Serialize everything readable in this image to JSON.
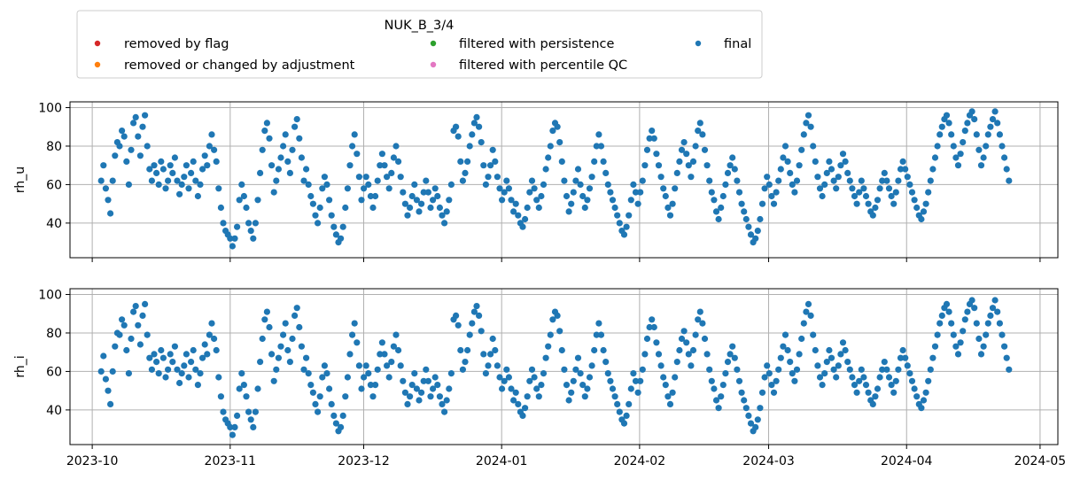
{
  "colors": {
    "removed_by_flag": "#d62728",
    "removed_or_changed_by_adjustment": "#ff7f0e",
    "filtered_with_persistence": "#2ca02c",
    "filtered_with_percentile_qc": "#e377c2",
    "final": "#1f77b4"
  },
  "legend": {
    "title": "NUK_B_3/4",
    "entries": [
      {
        "label": "removed by flag",
        "color_key": "removed_by_flag"
      },
      {
        "label": "filtered with persistence",
        "color_key": "filtered_with_persistence"
      },
      {
        "label": "final",
        "color_key": "final"
      },
      {
        "label": "removed or changed by adjustment",
        "color_key": "removed_or_changed_by_adjustment"
      },
      {
        "label": "filtered with percentile QC",
        "color_key": "filtered_with_percentile_qc"
      }
    ]
  },
  "chart_data": [
    {
      "type": "scatter",
      "ylabel": "rh_u",
      "xlim": [
        "2023-09-26",
        "2024-05-05"
      ],
      "ylim": [
        22,
        103
      ],
      "yticks": [
        40,
        60,
        80,
        100
      ],
      "xticks": [
        "2023-10-01",
        "2023-11-01",
        "2023-12-01",
        "2024-01-01",
        "2024-02-01",
        "2024-03-01",
        "2024-04-01",
        "2024-05-01"
      ],
      "xtick_labels": [],
      "grid": true,
      "series": [
        {
          "name": "final",
          "x_start": "2023-10-03",
          "x_end": "2024-04-24",
          "y": [
            62,
            70,
            58,
            52,
            45,
            62,
            75,
            82,
            80,
            88,
            85,
            72,
            60,
            78,
            92,
            95,
            85,
            75,
            90,
            96,
            80,
            68,
            62,
            70,
            66,
            60,
            72,
            68,
            58,
            62,
            70,
            66,
            74,
            62,
            55,
            60,
            64,
            70,
            58,
            66,
            72,
            62,
            54,
            60,
            68,
            75,
            70,
            80,
            86,
            78,
            72,
            58,
            48,
            40,
            36,
            34,
            32,
            28,
            32,
            38,
            52,
            60,
            54,
            48,
            40,
            36,
            32,
            40,
            52,
            66,
            78,
            88,
            92,
            84,
            70,
            56,
            62,
            68,
            74,
            80,
            86,
            72,
            66,
            78,
            90,
            94,
            84,
            74,
            62,
            68,
            60,
            54,
            50,
            44,
            40,
            48,
            58,
            64,
            60,
            52,
            44,
            38,
            34,
            30,
            32,
            38,
            48,
            58,
            70,
            80,
            86,
            76,
            64,
            52,
            58,
            64,
            60,
            54,
            48,
            54,
            62,
            70,
            76,
            70,
            64,
            58,
            66,
            74,
            80,
            72,
            64,
            56,
            50,
            44,
            48,
            54,
            60,
            52,
            46,
            50,
            56,
            62,
            56,
            48,
            52,
            58,
            54,
            48,
            44,
            40,
            46,
            52,
            60,
            88,
            90,
            85,
            72,
            62,
            66,
            72,
            80,
            86,
            92,
            95,
            90,
            82,
            70,
            60,
            64,
            70,
            78,
            72,
            64,
            58,
            52,
            56,
            62,
            58,
            52,
            46,
            50,
            44,
            40,
            38,
            42,
            48,
            56,
            62,
            58,
            52,
            48,
            54,
            60,
            68,
            74,
            80,
            88,
            92,
            90,
            82,
            72,
            62,
            54,
            46,
            50,
            56,
            62,
            68,
            60,
            54,
            48,
            52,
            58,
            64,
            72,
            80,
            86,
            80,
            72,
            66,
            60,
            56,
            52,
            48,
            44,
            40,
            36,
            34,
            38,
            44,
            52,
            60,
            56,
            50,
            56,
            62,
            70,
            78,
            84,
            88,
            84,
            76,
            70,
            64,
            58,
            54,
            48,
            44,
            50,
            58,
            66,
            72,
            78,
            82,
            76,
            70,
            64,
            72,
            80,
            88,
            92,
            86,
            78,
            70,
            62,
            56,
            52,
            46,
            42,
            48,
            54,
            60,
            66,
            70,
            74,
            68,
            62,
            56,
            50,
            46,
            42,
            38,
            34,
            30,
            32,
            36,
            42,
            50,
            58,
            64,
            60,
            54,
            50,
            56,
            62,
            68,
            74,
            80,
            72,
            66,
            60,
            56,
            62,
            70,
            78,
            86,
            92,
            96,
            90,
            80,
            72,
            64,
            58,
            54,
            60,
            66,
            72,
            68,
            62,
            58,
            64,
            70,
            76,
            72,
            66,
            62,
            58,
            54,
            50,
            56,
            62,
            58,
            54,
            50,
            46,
            44,
            48,
            52,
            58,
            62,
            66,
            62,
            58,
            54,
            50,
            56,
            62,
            68,
            72,
            68,
            64,
            60,
            56,
            52,
            48,
            44,
            42,
            46,
            50,
            56,
            62,
            68,
            74,
            80,
            86,
            90,
            94,
            96,
            92,
            86,
            80,
            74,
            70,
            76,
            82,
            88,
            92,
            96,
            98,
            94,
            86,
            78,
            70,
            74,
            80,
            86,
            90,
            94,
            98,
            92,
            86,
            80,
            74,
            68,
            62
          ]
        }
      ]
    },
    {
      "type": "scatter",
      "ylabel": "rh_i",
      "xlim": [
        "2023-09-26",
        "2024-05-05"
      ],
      "ylim": [
        22,
        103
      ],
      "yticks": [
        40,
        60,
        80,
        100
      ],
      "xticks": [
        "2023-10-01",
        "2023-11-01",
        "2023-12-01",
        "2024-01-01",
        "2024-02-01",
        "2024-03-01",
        "2024-04-01",
        "2024-05-01"
      ],
      "xtick_labels": [
        "2023-10",
        "2023-11",
        "2023-12",
        "2024-01",
        "2024-02",
        "2024-03",
        "2024-04",
        "2024-05"
      ],
      "grid": true,
      "series": [
        {
          "name": "final",
          "x_start": "2023-10-03",
          "x_end": "2024-04-24",
          "y": [
            60,
            68,
            56,
            50,
            43,
            60,
            73,
            80,
            79,
            87,
            84,
            71,
            59,
            77,
            91,
            94,
            84,
            74,
            89,
            95,
            79,
            67,
            61,
            69,
            65,
            59,
            71,
            67,
            57,
            61,
            69,
            65,
            73,
            61,
            54,
            59,
            63,
            69,
            57,
            65,
            71,
            61,
            53,
            59,
            67,
            74,
            69,
            79,
            85,
            77,
            71,
            57,
            47,
            39,
            35,
            33,
            31,
            27,
            31,
            37,
            51,
            59,
            53,
            47,
            39,
            35,
            31,
            39,
            51,
            65,
            77,
            87,
            91,
            83,
            69,
            55,
            61,
            67,
            73,
            79,
            85,
            71,
            65,
            77,
            89,
            93,
            83,
            73,
            61,
            67,
            59,
            53,
            49,
            43,
            39,
            47,
            57,
            63,
            59,
            51,
            43,
            37,
            33,
            29,
            31,
            37,
            47,
            57,
            69,
            79,
            85,
            75,
            63,
            51,
            57,
            63,
            59,
            53,
            47,
            53,
            61,
            69,
            75,
            69,
            63,
            57,
            65,
            73,
            79,
            71,
            63,
            55,
            49,
            43,
            47,
            53,
            59,
            51,
            45,
            49,
            55,
            61,
            55,
            47,
            51,
            57,
            53,
            47,
            43,
            39,
            45,
            51,
            59,
            87,
            89,
            84,
            71,
            61,
            65,
            71,
            79,
            85,
            91,
            94,
            89,
            81,
            69,
            59,
            63,
            69,
            77,
            71,
            63,
            57,
            51,
            55,
            61,
            57,
            51,
            45,
            49,
            43,
            39,
            37,
            41,
            47,
            55,
            61,
            57,
            51,
            47,
            53,
            59,
            67,
            73,
            79,
            87,
            91,
            89,
            81,
            71,
            61,
            53,
            45,
            49,
            55,
            61,
            67,
            59,
            53,
            47,
            51,
            57,
            63,
            71,
            79,
            85,
            79,
            71,
            65,
            59,
            55,
            51,
            47,
            43,
            39,
            35,
            33,
            37,
            43,
            51,
            59,
            55,
            49,
            55,
            61,
            69,
            77,
            83,
            87,
            83,
            75,
            69,
            63,
            57,
            53,
            47,
            43,
            49,
            57,
            65,
            71,
            77,
            81,
            75,
            69,
            63,
            71,
            79,
            87,
            91,
            85,
            77,
            69,
            61,
            55,
            51,
            45,
            41,
            47,
            53,
            59,
            65,
            69,
            73,
            67,
            61,
            55,
            49,
            45,
            41,
            37,
            33,
            29,
            31,
            35,
            41,
            49,
            57,
            63,
            59,
            53,
            49,
            55,
            61,
            67,
            73,
            79,
            71,
            65,
            59,
            55,
            61,
            69,
            77,
            85,
            91,
            95,
            89,
            79,
            71,
            63,
            57,
            53,
            59,
            65,
            71,
            67,
            61,
            57,
            63,
            69,
            75,
            71,
            65,
            61,
            57,
            53,
            49,
            55,
            61,
            57,
            53,
            49,
            45,
            43,
            47,
            51,
            57,
            61,
            65,
            61,
            57,
            53,
            49,
            55,
            61,
            67,
            71,
            67,
            63,
            59,
            55,
            51,
            47,
            43,
            41,
            45,
            49,
            55,
            61,
            67,
            73,
            79,
            85,
            89,
            93,
            95,
            91,
            85,
            79,
            73,
            69,
            75,
            81,
            87,
            91,
            95,
            97,
            93,
            85,
            77,
            69,
            73,
            79,
            85,
            89,
            93,
            97,
            91,
            85,
            79,
            73,
            67,
            61
          ]
        }
      ]
    }
  ]
}
